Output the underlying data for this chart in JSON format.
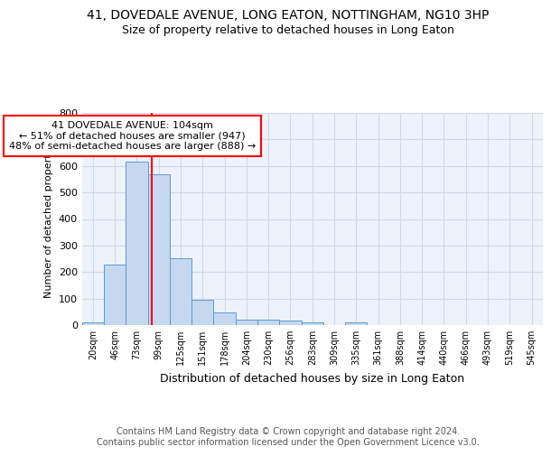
{
  "title_line1": "41, DOVEDALE AVENUE, LONG EATON, NOTTINGHAM, NG10 3HP",
  "title_line2": "Size of property relative to detached houses in Long Eaton",
  "xlabel": "Distribution of detached houses by size in Long Eaton",
  "ylabel": "Number of detached properties",
  "bin_labels": [
    "20sqm",
    "46sqm",
    "73sqm",
    "99sqm",
    "125sqm",
    "151sqm",
    "178sqm",
    "204sqm",
    "230sqm",
    "256sqm",
    "283sqm",
    "309sqm",
    "335sqm",
    "361sqm",
    "388sqm",
    "414sqm",
    "440sqm",
    "466sqm",
    "493sqm",
    "519sqm",
    "545sqm"
  ],
  "bin_values": [
    10,
    228,
    617,
    570,
    253,
    97,
    47,
    22,
    22,
    18,
    9,
    0,
    9,
    0,
    0,
    0,
    0,
    0,
    0,
    0,
    0
  ],
  "bar_color": "#c5d8f0",
  "bar_edge_color": "#5b9bd5",
  "annotation_text": "41 DOVEDALE AVENUE: 104sqm\n← 51% of detached houses are smaller (947)\n48% of semi-detached houses are larger (888) →",
  "annotation_box_color": "white",
  "annotation_box_edge_color": "red",
  "red_line_color": "red",
  "ylim": [
    0,
    800
  ],
  "yticks": [
    0,
    100,
    200,
    300,
    400,
    500,
    600,
    700,
    800
  ],
  "grid_color": "#d0d8e8",
  "bg_color": "#eef2fa",
  "footer_text": "Contains HM Land Registry data © Crown copyright and database right 2024.\nContains public sector information licensed under the Open Government Licence v3.0.",
  "title_fontsize": 10,
  "subtitle_fontsize": 9,
  "annotation_fontsize": 8,
  "footer_fontsize": 7,
  "ylabel_fontsize": 8,
  "xlabel_fontsize": 9,
  "ytick_fontsize": 8,
  "xtick_fontsize": 7
}
